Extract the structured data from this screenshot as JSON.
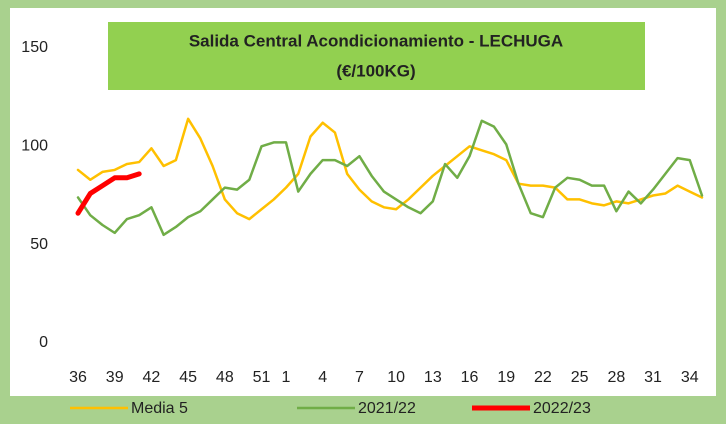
{
  "chart_data": {
    "type": "line",
    "title": [
      "Salida Central Acondicionamiento - LECHUGA",
      "(€/100KG)"
    ],
    "categories": [
      "36",
      null,
      null,
      "39",
      null,
      null,
      "42",
      null,
      null,
      "45",
      null,
      null,
      "48",
      null,
      null,
      "51",
      null,
      "1",
      null,
      null,
      "4",
      null,
      null,
      "7",
      null,
      null,
      "10",
      null,
      null,
      "13",
      null,
      null,
      "16",
      null,
      null,
      "19",
      null,
      null,
      "22",
      null,
      null,
      "25",
      null,
      null,
      "28",
      null,
      null,
      "31",
      null,
      null,
      "34",
      null
    ],
    "series": [
      {
        "name": "Media 5",
        "color": "#ffc000",
        "width": 2.5,
        "values": [
          88,
          83,
          87,
          88,
          91,
          92,
          99,
          90,
          93,
          114,
          104,
          90,
          73,
          66,
          63,
          68,
          73,
          79,
          86,
          105,
          112,
          107,
          86,
          78,
          72,
          69,
          68,
          73,
          79,
          85,
          90,
          95,
          100,
          98,
          96,
          93,
          81,
          80,
          80,
          79,
          73,
          73,
          71,
          70,
          72,
          71,
          73,
          75,
          76,
          80,
          77,
          74
        ]
      },
      {
        "name": "2021/22",
        "color": "#70ad47",
        "width": 2.5,
        "values": [
          74,
          65,
          60,
          56,
          63,
          65,
          69,
          55,
          59,
          64,
          67,
          73,
          79,
          78,
          83,
          100,
          102,
          102,
          77,
          86,
          93,
          93,
          90,
          95,
          85,
          77,
          73,
          69,
          66,
          72,
          91,
          84,
          95,
          113,
          110,
          101,
          81,
          66,
          64,
          79,
          84,
          83,
          80,
          80,
          67,
          77,
          71,
          78,
          86,
          94,
          93,
          75
        ]
      },
      {
        "name": "2022/23",
        "color": "#ff0000",
        "width": 5,
        "values": [
          66,
          76,
          80,
          84,
          84,
          86,
          null,
          null,
          null,
          null,
          null,
          null,
          null,
          null,
          null,
          null,
          null,
          null,
          null,
          null,
          null,
          null,
          null,
          null,
          null,
          null,
          null,
          null,
          null,
          null,
          null,
          null,
          null,
          null,
          null,
          null,
          null,
          null,
          null,
          null,
          null,
          null,
          null,
          null,
          null,
          null,
          null,
          null,
          null,
          null,
          null,
          null
        ]
      }
    ],
    "ylim": [
      0,
      150
    ],
    "yticks": [
      0,
      50,
      100,
      150
    ],
    "grid": false
  }
}
